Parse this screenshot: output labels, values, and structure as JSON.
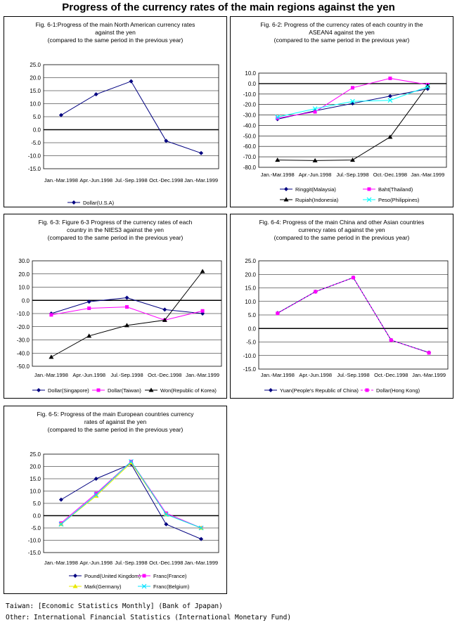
{
  "page_title": "Progress of the currency rates of the main regions against the yen",
  "sources": [
    "Taiwan: [Economic Statistics Monthly] (Bank of Jpapan)",
    "Other: International Financial Statistics (International Monetary Fund)"
  ],
  "chart_data": [
    {
      "type": "line",
      "title": "Fig. 6-1:Progress of the main North American currency rates\nagainst the yen\n(compared to the same period in the previous year)",
      "categories": [
        "Jan.-Mar.1998",
        "Apr.-Jun.1998",
        "Jul.-Sep.1998",
        "Oct.-Dec.1998",
        "Jan.-Mar.1999"
      ],
      "ylim": [
        -15,
        25
      ],
      "yticks": [
        "25.0",
        "20.0",
        "15.0",
        "10.0",
        "5.0",
        "0.0",
        "-5.0",
        "-10.0",
        "-15.0"
      ],
      "grid": true,
      "legend_position": "bottom",
      "series": [
        {
          "name": "Dollar(U.S.A)",
          "color": "#000080",
          "marker": "diamond",
          "values": [
            5.6,
            13.6,
            18.6,
            -4.3,
            -9.0
          ]
        }
      ]
    },
    {
      "type": "line",
      "title": "Fig. 6-2: Progress of the currency rates of each country in the\nASEAN4 against the yen\n(compared to the same period in the previous year)",
      "categories": [
        "Jan.-Mar.1998",
        "Apr.-Jun.1998",
        "Jul.-Sep.1998",
        "Oct.-Dec.1998",
        "Jan.-Mar.1999"
      ],
      "ylim": [
        -80,
        10
      ],
      "yticks": [
        "10.0",
        "0.0",
        "-10.0",
        "-20.0",
        "-30.0",
        "-40.0",
        "-50.0",
        "-60.0",
        "-70.0",
        "-80.0"
      ],
      "grid": true,
      "legend_position": "bottom",
      "series": [
        {
          "name": "Ringgit(Malaysia)",
          "color": "#000080",
          "marker": "diamond",
          "values": [
            -34,
            -26,
            -19,
            -12,
            -5
          ]
        },
        {
          "name": "Baht(Thailand)",
          "color": "#ff00ff",
          "marker": "square",
          "values": [
            -33,
            -27,
            -4,
            5,
            -1
          ]
        },
        {
          "name": "Rupiah(Indonesia)",
          "color": "#000000",
          "marker": "triangle",
          "values": [
            -73,
            -73.5,
            -73,
            -51,
            -2
          ]
        },
        {
          "name": "Peso(Philippines)",
          "color": "#00ffff",
          "marker": "x",
          "values": [
            -32,
            -24,
            -17,
            -16,
            -3
          ]
        }
      ]
    },
    {
      "type": "line",
      "title": "Fig. 6-3: Figure 6-3 Progress of the currency rates of each\ncountry in the NIES3 against the yen\n(compared to the same period in the previous year)",
      "categories": [
        "Jan.-Mar.1998",
        "Apr.-Jun.1998",
        "Jul.-Sep.1998",
        "Oct.-Dec.1998",
        "Jan.-Mar.1999"
      ],
      "ylim": [
        -50,
        30
      ],
      "yticks": [
        "30.0",
        "20.0",
        "10.0",
        "0.0",
        "-10.0",
        "-20.0",
        "-30.0",
        "-40.0",
        "-50.0"
      ],
      "grid": true,
      "legend_position": "bottom",
      "series": [
        {
          "name": "Dollar(Singapore)",
          "color": "#000080",
          "marker": "diamond",
          "values": [
            -10,
            -1,
            2,
            -7,
            -10
          ]
        },
        {
          "name": "Dollar(Taiwan)",
          "color": "#ff00ff",
          "marker": "square",
          "values": [
            -11,
            -6,
            -5,
            -15,
            -8
          ]
        },
        {
          "name": "Won(Republic of Korea)",
          "color": "#000000",
          "marker": "triangle",
          "values": [
            -43,
            -27,
            -19,
            -15,
            22
          ]
        }
      ]
    },
    {
      "type": "line",
      "title": "Fig. 6-4: Progress of the main China and other Asian countries\ncurrency rates of against the yen\n(compared to the same period in the previous year)",
      "categories": [
        "Jan.-Mar.1998",
        "Apr.-Jun.1998",
        "Jul.-Sep.1998",
        "Oct.-Dec.1998",
        "Jan.-Mar.1999"
      ],
      "ylim": [
        -15,
        25
      ],
      "yticks": [
        "25.0",
        "20.0",
        "15.0",
        "10.0",
        "5.0",
        "0.0",
        "-5.0",
        "-10.0",
        "-15.0"
      ],
      "grid": true,
      "legend_position": "bottom",
      "series": [
        {
          "name": "Yuan(People's Republic of China)",
          "color": "#000080",
          "marker": "diamond",
          "values": [
            5.7,
            13.6,
            18.8,
            -4.3,
            -8.9
          ]
        },
        {
          "name": "Dollar(Hong Kong)",
          "color": "#ff00ff",
          "marker": "square",
          "values": [
            5.6,
            13.6,
            18.8,
            -4.3,
            -9.0
          ],
          "dashed": true
        }
      ]
    },
    {
      "type": "line",
      "title": "Fig. 6-5: Progress of the main European countries currency\nrates of against the yen\n(compared to the same period in the previous year)",
      "categories": [
        "Jan.-Mar.1998",
        "Apr.-Jun.1998",
        "Jul.-Sep.1998",
        "Oct.-Dec.1998",
        "Jan.-Mar.1999"
      ],
      "ylim": [
        -15,
        25
      ],
      "yticks": [
        "25.0",
        "20.0",
        "15.0",
        "10.0",
        "5.0",
        "0.0",
        "-5.0",
        "-10.0",
        "-15.0"
      ],
      "grid": true,
      "legend_position": "bottom",
      "series": [
        {
          "name": "Pound(United Kingdom)",
          "color": "#000080",
          "marker": "diamond",
          "values": [
            6.5,
            15,
            21,
            -3.5,
            -9.5
          ]
        },
        {
          "name": "Franc(France)",
          "color": "#ff00ff",
          "marker": "square",
          "values": [
            -3,
            9,
            22,
            1,
            -5
          ]
        },
        {
          "name": "Mark(Germany)",
          "color": "#e8e800",
          "marker": "triangle",
          "values": [
            -3.5,
            8,
            21.5,
            0.5,
            -5
          ]
        },
        {
          "name": "Franc(Belgium)",
          "color": "#00e0ff",
          "marker": "x",
          "values": [
            -3.5,
            8.5,
            22,
            0.5,
            -5
          ]
        }
      ]
    }
  ]
}
